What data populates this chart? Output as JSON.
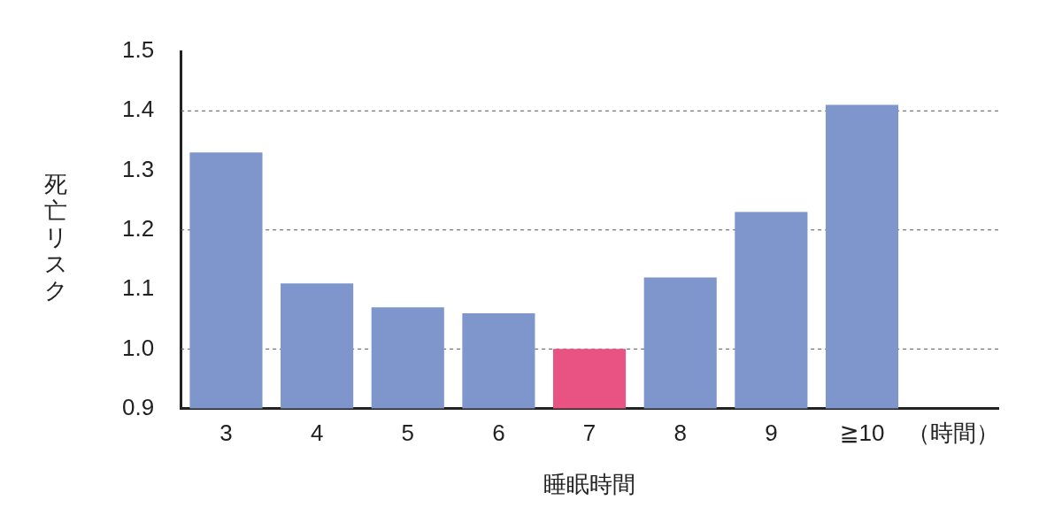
{
  "chart_data": {
    "type": "bar",
    "xlabel": "睡眠時間",
    "ylabel": "死亡リスク",
    "categories": [
      "3",
      "4",
      "5",
      "6",
      "7",
      "8",
      "9",
      "≧10",
      "（時間）"
    ],
    "values": [
      1.33,
      1.11,
      1.07,
      1.06,
      1.0,
      1.12,
      1.23,
      1.41,
      null
    ],
    "colors": [
      "#7f96cc",
      "#7f96cc",
      "#7f96cc",
      "#7f96cc",
      "#e85383",
      "#7f96cc",
      "#7f96cc",
      "#7f96cc",
      "#7f96cc"
    ],
    "ylim": [
      0.9,
      1.5
    ],
    "yticks": [
      0.9,
      {
        "value": 1.0,
        "label": "1.0"
      },
      1.1,
      1.2,
      1.3,
      1.4,
      1.5
    ],
    "ref_lines": [
      {
        "axis": "y",
        "value": 1.0,
        "color": "#555555",
        "line_style": "dashed"
      },
      {
        "axis": "y",
        "value": 1.2,
        "color": "#555555",
        "line_style": "dashed"
      },
      {
        "axis": "y",
        "value": 1.4,
        "color": "#555555",
        "line_style": "dashed"
      }
    ],
    "grid": false,
    "legend": false
  }
}
